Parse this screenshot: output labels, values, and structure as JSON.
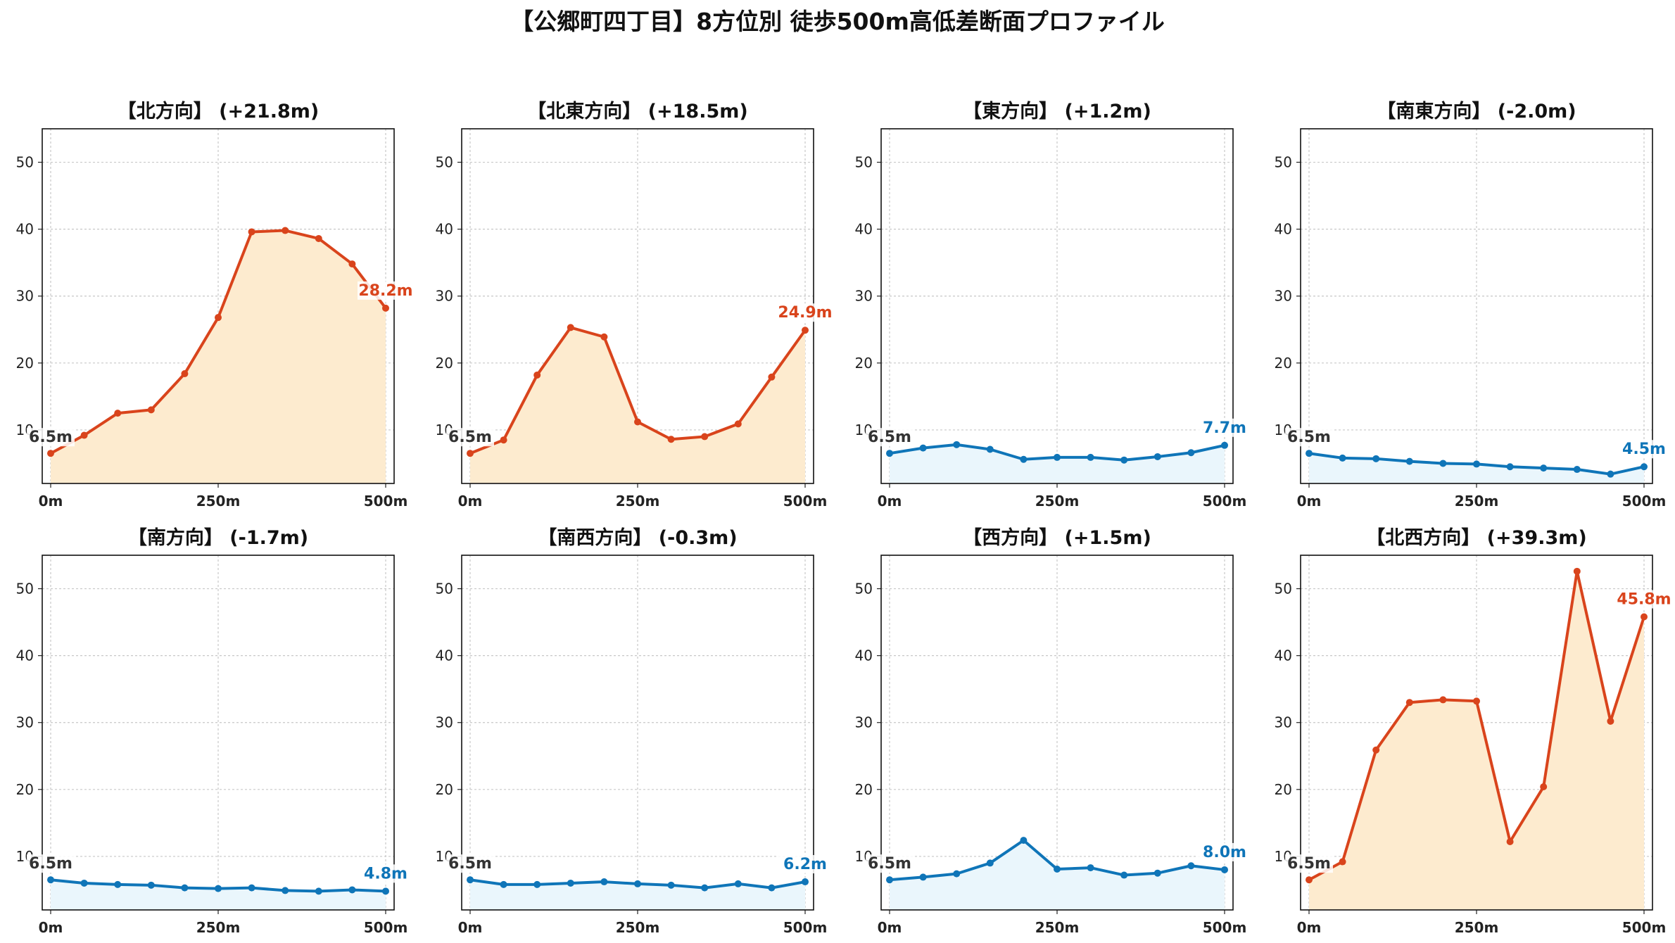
{
  "title": "【公郷町四丁目】8方位別 徒歩500m高低差断面プロファイル",
  "colors": {
    "up_line": "#d9441c",
    "up_fill": "#fdebcf",
    "down_line": "#0f75b8",
    "down_fill": "#eaf6fc",
    "start_label": "#333333"
  },
  "chart_data": [
    {
      "type": "area",
      "title": "【北方向】 (+21.8m)",
      "trend": "up",
      "x": [
        0,
        50,
        100,
        150,
        200,
        250,
        300,
        350,
        400,
        450,
        500
      ],
      "series": [
        {
          "values": [
            6.5,
            9.2,
            12.5,
            13.0,
            18.4,
            26.8,
            39.6,
            39.8,
            38.6,
            34.8,
            28.2
          ]
        }
      ],
      "start_label": "6.5m",
      "end_label": "28.2m",
      "xticks": [
        "0m",
        "250m",
        "500m"
      ],
      "yticks": [
        "10",
        "20",
        "30",
        "40",
        "50"
      ],
      "xlim": [
        0,
        500
      ],
      "ylim": [
        2,
        55
      ],
      "grid": true
    },
    {
      "type": "area",
      "title": "【北東方向】 (+18.5m)",
      "trend": "up",
      "x": [
        0,
        50,
        100,
        150,
        200,
        250,
        300,
        350,
        400,
        450,
        500
      ],
      "series": [
        {
          "values": [
            6.5,
            8.5,
            18.2,
            25.3,
            23.9,
            11.2,
            8.6,
            9.0,
            10.9,
            17.9,
            24.9
          ]
        }
      ],
      "start_label": "6.5m",
      "end_label": "24.9m",
      "xticks": [
        "0m",
        "250m",
        "500m"
      ],
      "yticks": [
        "10",
        "20",
        "30",
        "40",
        "50"
      ],
      "xlim": [
        0,
        500
      ],
      "ylim": [
        2,
        55
      ],
      "grid": true
    },
    {
      "type": "area",
      "title": "【東方向】 (+1.2m)",
      "trend": "down",
      "x": [
        0,
        50,
        100,
        150,
        200,
        250,
        300,
        350,
        400,
        450,
        500
      ],
      "series": [
        {
          "values": [
            6.5,
            7.3,
            7.8,
            7.1,
            5.6,
            5.9,
            5.9,
            5.5,
            6.0,
            6.6,
            7.7
          ]
        }
      ],
      "start_label": "6.5m",
      "end_label": "7.7m",
      "xticks": [
        "0m",
        "250m",
        "500m"
      ],
      "yticks": [
        "10",
        "20",
        "30",
        "40",
        "50"
      ],
      "xlim": [
        0,
        500
      ],
      "ylim": [
        2,
        55
      ],
      "grid": true
    },
    {
      "type": "area",
      "title": "【南東方向】 (-2.0m)",
      "trend": "down",
      "x": [
        0,
        50,
        100,
        150,
        200,
        250,
        300,
        350,
        400,
        450,
        500
      ],
      "series": [
        {
          "values": [
            6.5,
            5.8,
            5.7,
            5.3,
            5.0,
            4.9,
            4.5,
            4.3,
            4.1,
            3.4,
            4.5
          ]
        }
      ],
      "start_label": "6.5m",
      "end_label": "4.5m",
      "xticks": [
        "0m",
        "250m",
        "500m"
      ],
      "yticks": [
        "10",
        "20",
        "30",
        "40",
        "50"
      ],
      "xlim": [
        0,
        500
      ],
      "ylim": [
        2,
        55
      ],
      "grid": true
    },
    {
      "type": "area",
      "title": "【南方向】 (-1.7m)",
      "trend": "down",
      "x": [
        0,
        50,
        100,
        150,
        200,
        250,
        300,
        350,
        400,
        450,
        500
      ],
      "series": [
        {
          "values": [
            6.5,
            6.0,
            5.8,
            5.7,
            5.3,
            5.2,
            5.3,
            4.9,
            4.8,
            5.0,
            4.8
          ]
        }
      ],
      "start_label": "6.5m",
      "end_label": "4.8m",
      "xticks": [
        "0m",
        "250m",
        "500m"
      ],
      "yticks": [
        "10",
        "20",
        "30",
        "40",
        "50"
      ],
      "xlim": [
        0,
        500
      ],
      "ylim": [
        2,
        55
      ],
      "grid": true
    },
    {
      "type": "area",
      "title": "【南西方向】 (-0.3m)",
      "trend": "down",
      "x": [
        0,
        50,
        100,
        150,
        200,
        250,
        300,
        350,
        400,
        450,
        500
      ],
      "series": [
        {
          "values": [
            6.5,
            5.8,
            5.8,
            6.0,
            6.2,
            5.9,
            5.7,
            5.3,
            5.9,
            5.3,
            6.2
          ]
        }
      ],
      "start_label": "6.5m",
      "end_label": "6.2m",
      "xticks": [
        "0m",
        "250m",
        "500m"
      ],
      "yticks": [
        "10",
        "20",
        "30",
        "40",
        "50"
      ],
      "xlim": [
        0,
        500
      ],
      "ylim": [
        2,
        55
      ],
      "grid": true
    },
    {
      "type": "area",
      "title": "【西方向】 (+1.5m)",
      "trend": "down",
      "x": [
        0,
        50,
        100,
        150,
        200,
        250,
        300,
        350,
        400,
        450,
        500
      ],
      "series": [
        {
          "values": [
            6.5,
            6.9,
            7.4,
            9.0,
            12.4,
            8.1,
            8.3,
            7.2,
            7.5,
            8.6,
            8.0
          ]
        }
      ],
      "start_label": "6.5m",
      "end_label": "8.0m",
      "xticks": [
        "0m",
        "250m",
        "500m"
      ],
      "yticks": [
        "10",
        "20",
        "30",
        "40",
        "50"
      ],
      "xlim": [
        0,
        500
      ],
      "ylim": [
        2,
        55
      ],
      "grid": true
    },
    {
      "type": "area",
      "title": "【北西方向】 (+39.3m)",
      "trend": "up",
      "x": [
        0,
        50,
        100,
        150,
        200,
        250,
        300,
        350,
        400,
        450,
        500
      ],
      "series": [
        {
          "values": [
            6.5,
            9.2,
            25.9,
            33.0,
            33.4,
            33.2,
            12.2,
            20.4,
            52.6,
            30.2,
            45.8
          ]
        }
      ],
      "start_label": "6.5m",
      "end_label": "45.8m",
      "xticks": [
        "0m",
        "250m",
        "500m"
      ],
      "yticks": [
        "10",
        "20",
        "30",
        "40",
        "50"
      ],
      "xlim": [
        0,
        500
      ],
      "ylim": [
        2,
        55
      ],
      "grid": true
    }
  ]
}
